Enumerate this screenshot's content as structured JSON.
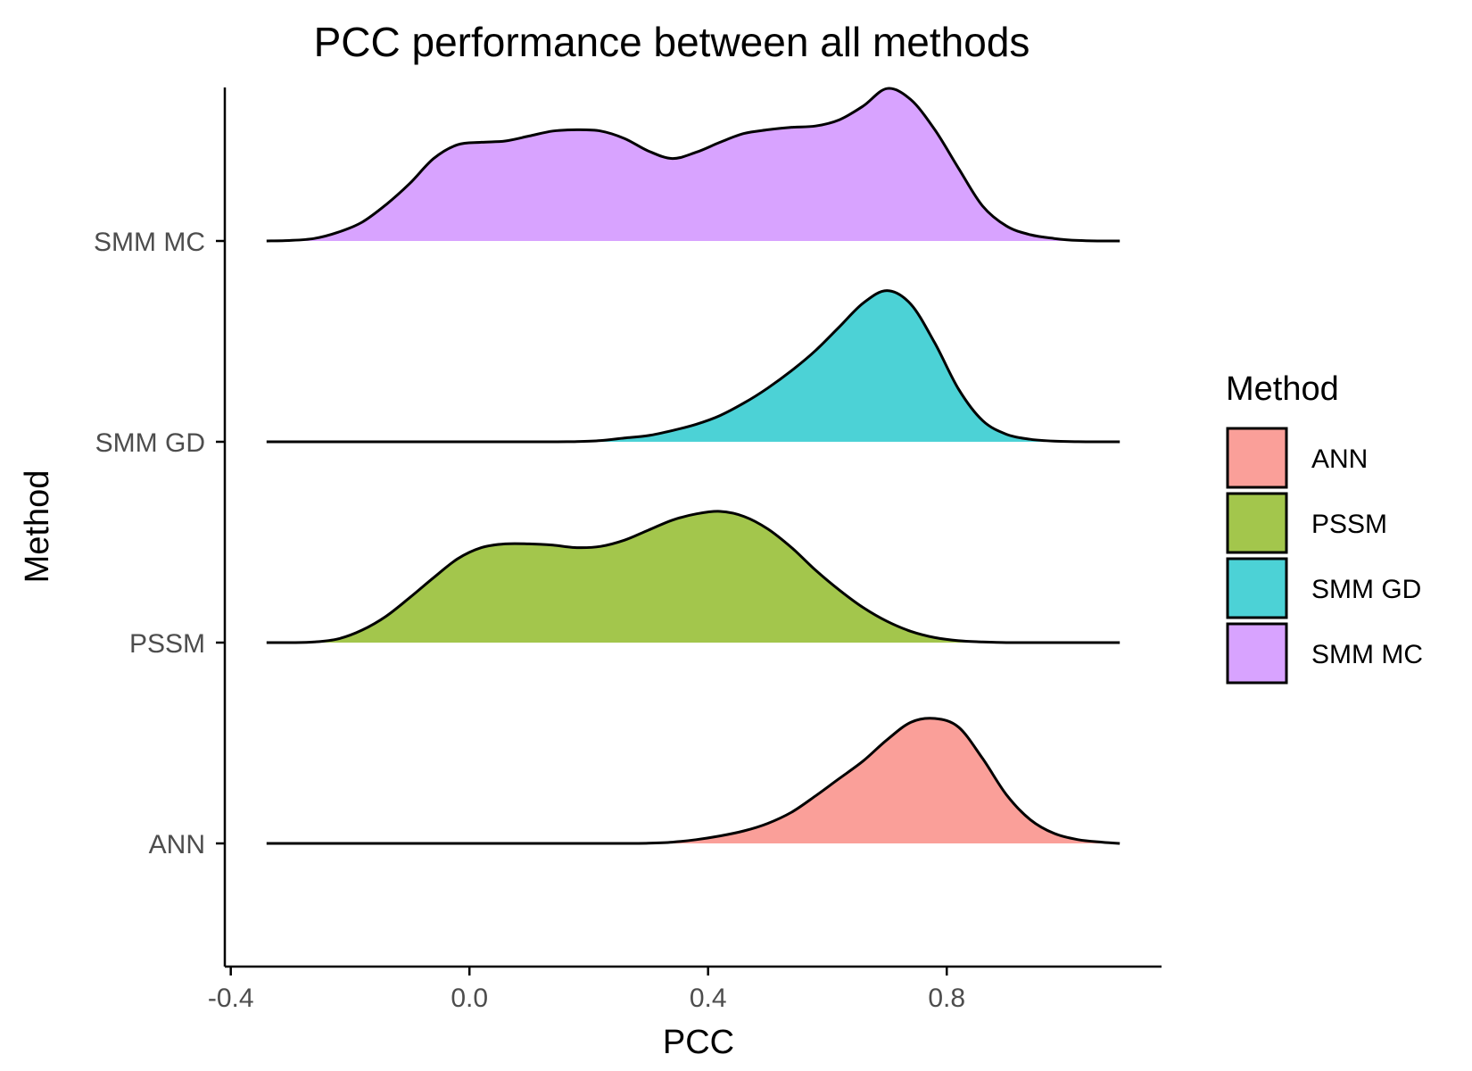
{
  "chart_data": {
    "type": "area",
    "subtype": "ridgeline-density",
    "title": "PCC performance between all methods",
    "xlabel": "PCC",
    "ylabel": "Method",
    "xlim": [
      -0.41,
      1.16
    ],
    "xticks": [
      {
        "value": -0.4,
        "label": "-0.4"
      },
      {
        "value": 0.0,
        "label": "0.0"
      },
      {
        "value": 0.4,
        "label": "0.4"
      },
      {
        "value": 0.8,
        "label": "0.8"
      }
    ],
    "categories": [
      "ANN",
      "PSSM",
      "SMM GD",
      "SMM MC"
    ],
    "legend": {
      "title": "Method",
      "position": "right"
    },
    "grid": false,
    "density_x": [
      -0.34,
      -0.3,
      -0.26,
      -0.22,
      -0.18,
      -0.14,
      -0.1,
      -0.06,
      -0.02,
      0.02,
      0.06,
      0.1,
      0.14,
      0.18,
      0.22,
      0.26,
      0.3,
      0.34,
      0.38,
      0.42,
      0.46,
      0.5,
      0.54,
      0.58,
      0.62,
      0.66,
      0.7,
      0.74,
      0.78,
      0.82,
      0.86,
      0.9,
      0.94,
      0.98,
      1.02,
      1.06,
      1.09
    ],
    "series": [
      {
        "name": "ANN",
        "color": "#F8766D",
        "density": [
          0,
          0,
          0,
          0,
          0,
          0,
          0,
          0,
          0,
          0,
          0,
          0,
          0,
          0,
          0,
          0,
          0.002,
          0.01,
          0.03,
          0.06,
          0.1,
          0.16,
          0.25,
          0.38,
          0.52,
          0.66,
          0.83,
          0.97,
          1.0,
          0.93,
          0.68,
          0.39,
          0.19,
          0.08,
          0.03,
          0.01,
          0
        ]
      },
      {
        "name": "PSSM",
        "color": "#7CAE00",
        "density": [
          0,
          0,
          0.005,
          0.03,
          0.1,
          0.21,
          0.36,
          0.52,
          0.67,
          0.76,
          0.79,
          0.79,
          0.78,
          0.76,
          0.77,
          0.82,
          0.9,
          0.98,
          1.03,
          1.05,
          1.01,
          0.91,
          0.76,
          0.58,
          0.42,
          0.28,
          0.17,
          0.09,
          0.04,
          0.015,
          0.005,
          0,
          0,
          0,
          0,
          0,
          0
        ]
      },
      {
        "name": "SMM GD",
        "color": "#00BFC4",
        "density": [
          0,
          0,
          0,
          0,
          0,
          0,
          0,
          0,
          0,
          0,
          0,
          0,
          0,
          0.002,
          0.01,
          0.03,
          0.05,
          0.09,
          0.14,
          0.21,
          0.31,
          0.43,
          0.57,
          0.73,
          0.92,
          1.11,
          1.21,
          1.1,
          0.79,
          0.42,
          0.17,
          0.06,
          0.02,
          0.005,
          0.001,
          0,
          0
        ]
      },
      {
        "name": "SMM MC",
        "color": "#C77CFF",
        "density": [
          0,
          0.004,
          0.02,
          0.07,
          0.15,
          0.29,
          0.46,
          0.66,
          0.77,
          0.79,
          0.8,
          0.84,
          0.88,
          0.89,
          0.88,
          0.82,
          0.72,
          0.66,
          0.71,
          0.79,
          0.86,
          0.89,
          0.91,
          0.92,
          0.97,
          1.08,
          1.22,
          1.13,
          0.89,
          0.58,
          0.28,
          0.12,
          0.05,
          0.02,
          0.004,
          0,
          0
        ]
      }
    ]
  }
}
